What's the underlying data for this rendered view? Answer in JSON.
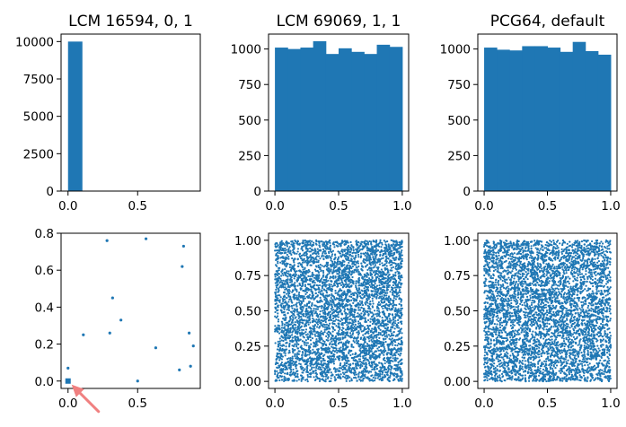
{
  "chart_data": [
    {
      "type": "bar",
      "title": "LCM 16594, 0, 1",
      "bar_width": 0.1,
      "bar_left_edges": [
        0.0
      ],
      "values": [
        10000
      ],
      "xlim": [
        -0.05,
        0.95
      ],
      "ylim": [
        0,
        10500
      ],
      "xticks": [
        "0.0",
        "0.5"
      ],
      "yticks": [
        "0",
        "2500",
        "5000",
        "7500",
        "10000"
      ]
    },
    {
      "type": "bar",
      "title": "LCM 69069, 1, 1",
      "bar_width": 0.1,
      "bar_left_edges": [
        0.0,
        0.1,
        0.2,
        0.3,
        0.4,
        0.5,
        0.6,
        0.7,
        0.8,
        0.9
      ],
      "values": [
        1010,
        1000,
        1010,
        1055,
        965,
        1005,
        980,
        965,
        1030,
        1015
      ],
      "xlim": [
        -0.05,
        1.05
      ],
      "ylim": [
        0,
        1105
      ],
      "xticks": [
        "0.0",
        "0.5",
        "1.0"
      ],
      "yticks": [
        "0",
        "250",
        "500",
        "750",
        "1000"
      ]
    },
    {
      "type": "bar",
      "title": "PCG64, default",
      "bar_width": 0.1,
      "bar_left_edges": [
        0.0,
        0.1,
        0.2,
        0.3,
        0.4,
        0.5,
        0.6,
        0.7,
        0.8,
        0.9
      ],
      "values": [
        1010,
        995,
        990,
        1020,
        1020,
        1010,
        980,
        1050,
        985,
        960
      ],
      "xlim": [
        -0.05,
        1.05
      ],
      "ylim": [
        0,
        1105
      ],
      "xticks": [
        "0.0",
        "0.5",
        "1.0"
      ],
      "yticks": [
        "0",
        "250",
        "500",
        "750",
        "1000"
      ]
    },
    {
      "type": "scatter",
      "title": "",
      "x": [
        0.0,
        0.11,
        0.28,
        0.3,
        0.32,
        0.38,
        0.5,
        0.56,
        0.63,
        0.8,
        0.82,
        0.83,
        0.87,
        0.88,
        0.9,
        0.96,
        0.0
      ],
      "y": [
        0.0,
        0.25,
        0.76,
        0.26,
        0.45,
        0.33,
        0.0,
        0.77,
        0.18,
        0.06,
        0.62,
        0.73,
        0.26,
        0.08,
        0.19,
        0.07,
        0.07
      ],
      "xlim": [
        -0.05,
        0.95
      ],
      "ylim": [
        -0.04,
        0.8
      ],
      "xticks": [
        "0.0",
        "0.5"
      ],
      "yticks": [
        "0.0",
        "0.2",
        "0.4",
        "0.6",
        "0.8"
      ],
      "annotation": "red arrow pointing at the cluster near (0, 0)"
    },
    {
      "type": "scatter",
      "title": "",
      "distribution": "uniform random points over [0,1] x [0,1]",
      "xlim": [
        -0.05,
        1.05
      ],
      "ylim": [
        -0.05,
        1.05
      ],
      "xticks": [
        "0.0",
        "0.5",
        "1.0"
      ],
      "yticks": [
        "0.00",
        "0.25",
        "0.50",
        "0.75",
        "1.00"
      ]
    },
    {
      "type": "scatter",
      "title": "",
      "distribution": "uniform random points over [0,1] x [0,1]",
      "xlim": [
        -0.05,
        1.05
      ],
      "ylim": [
        -0.05,
        1.05
      ],
      "xticks": [
        "0.0",
        "0.5",
        "1.0"
      ],
      "yticks": [
        "0.00",
        "0.25",
        "0.50",
        "0.75",
        "1.00"
      ]
    }
  ],
  "colors": {
    "series": "#1f77b4",
    "arrow": "#f08080"
  }
}
